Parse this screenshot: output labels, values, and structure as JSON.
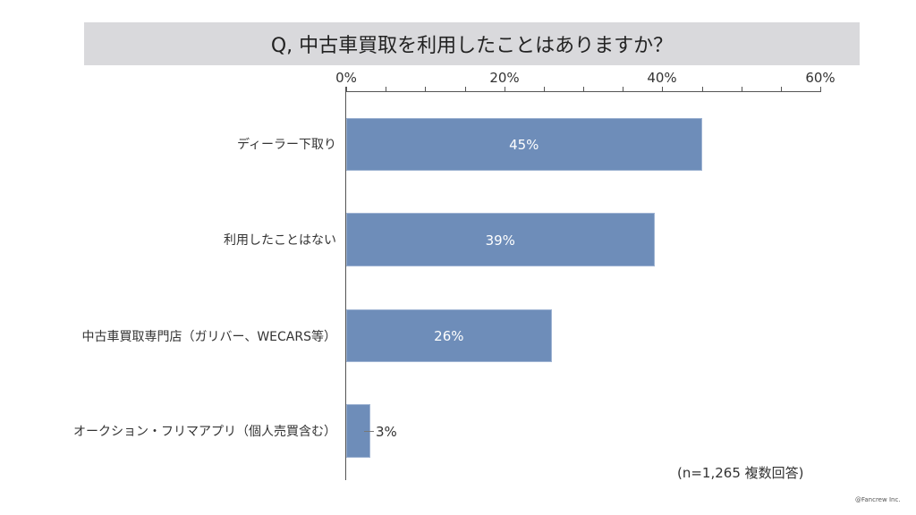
{
  "header": {
    "title": "Q, 中古車買取を利用したことはありますか？"
  },
  "chart_data": {
    "type": "bar",
    "orientation": "horizontal",
    "title": "Q, 中古車買取を利用したことはありますか？",
    "categories": [
      "ディーラー下取り",
      "利用したことはない",
      "中古車買取専門店（ガリバー、WECARS等）",
      "オークション・フリマアプリ（個人売買含む）"
    ],
    "values": [
      45,
      39,
      26,
      3
    ],
    "value_labels": [
      "45%",
      "39%",
      "26%",
      "3%"
    ],
    "xlabel": "",
    "ylabel": "",
    "xlim": [
      0,
      60
    ],
    "x_ticks": [
      "0%",
      "20%",
      "40%",
      "60%"
    ],
    "minor_tick_step": 5,
    "axis_position": "top",
    "grid": false,
    "legend": null,
    "bar_color": "#6e8db9",
    "annotation": "(n=1,265 複数回答)"
  },
  "footer": {
    "note": "(n=1,265 複数回答)",
    "copyright": "@Fancrew Inc."
  }
}
